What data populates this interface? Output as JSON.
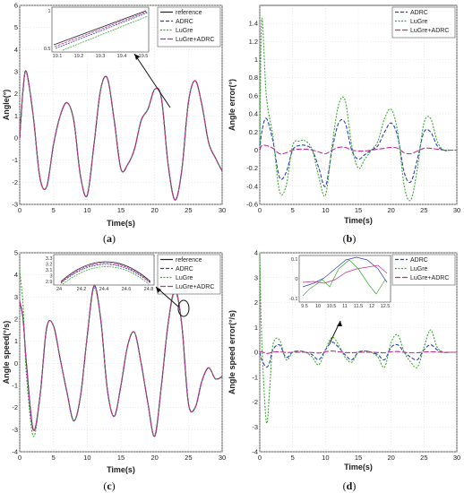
{
  "colors": {
    "reference": "#222222",
    "adrc": "#2b3fb8",
    "lugre": "#3aa832",
    "lugre_adrc": "#c0308a",
    "axis": "#333333",
    "grid": "#d8d8d8"
  },
  "panels": [
    {
      "id": "a",
      "caption": "a",
      "xlabel": "Time(s)",
      "ylabel": "Angle(°)",
      "xlim": [
        0,
        30
      ],
      "ylim": [
        -3,
        6
      ],
      "xticks": [
        "0",
        "5",
        "10",
        "15",
        "20",
        "25",
        "30"
      ],
      "yticks": [
        "-3",
        "-2",
        "-1",
        "0",
        "1",
        "2",
        "3",
        "4",
        "5",
        "6"
      ],
      "legend": [
        "reference",
        "ADRC",
        "LuGre",
        "LuGre+ADRC"
      ],
      "inset": {
        "xticks": [
          "19.1",
          "19.2",
          "19.3",
          "19.4",
          "19.5"
        ],
        "yticks": [
          "0.5",
          "1"
        ]
      }
    },
    {
      "id": "b",
      "caption": "b",
      "xlabel": "Time(s)",
      "ylabel": "Angle error(°)",
      "xlim": [
        0,
        30
      ],
      "ylim": [
        -0.6,
        1.6
      ],
      "xticks": [
        "0",
        "5",
        "10",
        "15",
        "20",
        "25",
        "30"
      ],
      "yticks": [
        "-0.6",
        "-0.4",
        "-0.2",
        "0",
        "0.2",
        "0.4",
        "0.6",
        "0.8",
        "1",
        "1.2",
        "1.4"
      ],
      "legend": [
        "ADRC",
        "LuGre",
        "LuGre+ADRC"
      ]
    },
    {
      "id": "c",
      "caption": "c",
      "xlabel": "Time(s)",
      "ylabel": "Angle speed(°/s)",
      "xlim": [
        0,
        30
      ],
      "ylim": [
        -4,
        5
      ],
      "xticks": [
        "0",
        "5",
        "10",
        "15",
        "20",
        "25",
        "30"
      ],
      "yticks": [
        "-4",
        "-3",
        "-2",
        "-1",
        "0",
        "1",
        "2",
        "3",
        "4",
        "5"
      ],
      "legend": [
        "reference",
        "ADRC",
        "LuGre",
        "LuGre+ADRC"
      ],
      "inset": {
        "xticks": [
          "24",
          "24.2",
          "24.4",
          "24.6",
          "24.8"
        ],
        "yticks": [
          "3.3",
          "3.2",
          "3.1",
          "3",
          "2.9"
        ]
      }
    },
    {
      "id": "d",
      "caption": "d",
      "xlabel": "Time(s)",
      "ylabel": "Angle speed error(°/s)",
      "xlim": [
        0,
        30
      ],
      "ylim": [
        -4,
        4
      ],
      "xticks": [
        "0",
        "5",
        "10",
        "15",
        "20",
        "25",
        "30"
      ],
      "yticks": [
        "-4",
        "-3",
        "-2",
        "-1",
        "0",
        "1",
        "2",
        "3",
        "4"
      ],
      "legend": [
        "ADRC",
        "LuGre",
        "LuGre+ADRC"
      ],
      "inset": {
        "xticks": [
          "9.5",
          "10",
          "10.5",
          "11",
          "11.5",
          "12",
          "12.5"
        ],
        "yticks": [
          "0.1",
          "0",
          "-0.1"
        ]
      }
    }
  ],
  "chart_data": [
    {
      "type": "line",
      "xlabel": "Time(s)",
      "ylabel": "Angle(°)",
      "xlim": [
        0,
        30
      ],
      "ylim": [
        -3,
        6
      ],
      "legend_position": "top-right",
      "x": [
        0,
        0.5,
        1,
        2,
        3,
        4,
        5,
        6,
        7,
        8,
        9,
        10,
        11,
        12,
        13,
        14,
        15,
        16,
        17,
        18,
        19,
        20,
        21,
        22,
        23,
        24,
        25,
        26,
        27,
        28,
        29,
        30
      ],
      "series": [
        {
          "name": "reference",
          "values": [
            0,
            2.2,
            3.0,
            1.0,
            -1.8,
            -2.2,
            -0.3,
            1.0,
            1.6,
            0.8,
            -1.7,
            -2.6,
            -0.3,
            2.2,
            2.7,
            0.8,
            -1.4,
            -1.2,
            -0.5,
            0.8,
            1.3,
            2.2,
            1.8,
            -1.2,
            -2.8,
            -1.5,
            1.6,
            2.6,
            1.5,
            -0.2,
            -0.9,
            -1.5
          ]
        },
        {
          "name": "ADRC",
          "values": [
            0,
            2.2,
            3.0,
            1.0,
            -1.8,
            -2.2,
            -0.3,
            1.0,
            1.6,
            0.8,
            -1.7,
            -2.6,
            -0.3,
            2.2,
            2.7,
            0.8,
            -1.4,
            -1.2,
            -0.5,
            0.8,
            1.3,
            2.2,
            1.8,
            -1.2,
            -2.8,
            -1.5,
            1.6,
            2.6,
            1.5,
            -0.2,
            -0.9,
            -1.5
          ]
        },
        {
          "name": "LuGre",
          "values": [
            0,
            2.2,
            3.0,
            1.0,
            -1.8,
            -2.2,
            -0.3,
            1.0,
            1.6,
            0.8,
            -1.7,
            -2.6,
            -0.3,
            2.2,
            2.7,
            0.8,
            -1.4,
            -1.2,
            -0.5,
            0.8,
            1.3,
            2.2,
            1.8,
            -1.2,
            -2.8,
            -1.5,
            1.6,
            2.6,
            1.5,
            -0.2,
            -0.9,
            -1.5
          ]
        },
        {
          "name": "LuGre+ADRC",
          "values": [
            0,
            2.2,
            3.0,
            1.0,
            -1.8,
            -2.2,
            -0.3,
            1.0,
            1.6,
            0.8,
            -1.7,
            -2.6,
            -0.3,
            2.2,
            2.7,
            0.8,
            -1.4,
            -1.2,
            -0.5,
            0.8,
            1.3,
            2.2,
            1.8,
            -1.2,
            -2.8,
            -1.5,
            1.6,
            2.6,
            1.5,
            -0.2,
            -0.9,
            -1.5
          ]
        }
      ]
    },
    {
      "type": "line",
      "xlabel": "Time(s)",
      "ylabel": "Angle error(°)",
      "xlim": [
        0,
        30
      ],
      "ylim": [
        -0.6,
        1.6
      ],
      "legend_position": "top-right",
      "x": [
        0,
        0.3,
        1,
        2,
        3,
        4,
        5,
        6,
        7,
        8,
        9,
        10,
        11,
        12,
        13,
        14,
        15,
        16,
        17,
        18,
        19,
        20,
        21,
        22,
        23,
        24,
        25,
        26,
        27,
        28,
        29,
        30
      ],
      "series": [
        {
          "name": "ADRC",
          "values": [
            0,
            0.2,
            0.35,
            0.1,
            -0.3,
            -0.25,
            0.0,
            0.05,
            0.05,
            0.0,
            -0.2,
            -0.4,
            0.0,
            0.3,
            0.3,
            0.0,
            -0.1,
            -0.05,
            0.0,
            0.05,
            0.2,
            0.3,
            0.15,
            -0.25,
            -0.35,
            -0.1,
            0.2,
            0.2,
            0.05,
            0.0,
            0.0,
            0.0
          ]
        },
        {
          "name": "LuGre",
          "values": [
            0,
            1.45,
            0.6,
            0.15,
            -0.45,
            -0.4,
            0.05,
            0.1,
            0.1,
            0.0,
            -0.3,
            -0.5,
            0.05,
            0.5,
            0.55,
            0.05,
            -0.2,
            -0.1,
            0.0,
            0.1,
            0.35,
            0.45,
            0.2,
            -0.4,
            -0.55,
            -0.2,
            0.3,
            0.35,
            0.1,
            0.0,
            0.0,
            0.0
          ]
        },
        {
          "name": "LuGre+ADRC",
          "values": [
            0,
            0.05,
            0.05,
            0.02,
            -0.04,
            -0.03,
            0.0,
            0.01,
            0.01,
            0.0,
            -0.02,
            -0.04,
            0.0,
            0.03,
            0.03,
            0.0,
            -0.01,
            -0.01,
            0.0,
            0.01,
            0.02,
            0.03,
            0.02,
            -0.03,
            -0.04,
            -0.01,
            0.02,
            0.02,
            0.01,
            0.0,
            0.0,
            0.0
          ]
        }
      ]
    },
    {
      "type": "line",
      "xlabel": "Time(s)",
      "ylabel": "Angle speed(°/s)",
      "xlim": [
        0,
        30
      ],
      "ylim": [
        -4,
        5
      ],
      "legend_position": "top-right",
      "x": [
        0,
        0.5,
        1,
        2,
        3,
        4,
        5,
        6,
        7,
        8,
        9,
        10,
        11,
        12,
        13,
        14,
        15,
        16,
        17,
        18,
        19,
        20,
        21,
        22,
        23,
        24,
        25,
        26,
        27,
        28,
        29,
        30
      ],
      "series": [
        {
          "name": "reference",
          "values": [
            2.8,
            2.0,
            0.0,
            -3.0,
            -1.5,
            1.6,
            1.7,
            0.2,
            -1.3,
            -2.6,
            -1.5,
            1.2,
            3.5,
            2.0,
            -1.2,
            -2.4,
            -1.0,
            0.8,
            1.4,
            0.0,
            -1.8,
            -3.3,
            -1.0,
            1.8,
            3.3,
            1.8,
            -1.8,
            -2.0,
            -0.8,
            -0.2,
            -0.7,
            -0.6
          ]
        },
        {
          "name": "ADRC",
          "values": [
            2.8,
            2.0,
            0.0,
            -3.0,
            -1.5,
            1.6,
            1.7,
            0.2,
            -1.3,
            -2.6,
            -1.5,
            1.2,
            3.5,
            2.0,
            -1.2,
            -2.4,
            -1.0,
            0.8,
            1.4,
            0.0,
            -1.8,
            -3.3,
            -1.0,
            1.8,
            3.3,
            1.8,
            -1.8,
            -2.0,
            -0.8,
            -0.2,
            -0.7,
            -0.6
          ]
        },
        {
          "name": "LuGre",
          "values": [
            4.2,
            2.6,
            -0.5,
            -3.3,
            -1.5,
            1.6,
            1.7,
            0.2,
            -1.3,
            -2.6,
            -1.5,
            1.2,
            3.4,
            2.0,
            -1.2,
            -2.4,
            -1.0,
            0.8,
            1.4,
            0.0,
            -1.8,
            -3.3,
            -1.0,
            1.8,
            3.2,
            1.8,
            -1.8,
            -2.0,
            -0.8,
            -0.2,
            -0.7,
            -0.6
          ]
        },
        {
          "name": "LuGre+ADRC",
          "values": [
            2.8,
            2.0,
            0.0,
            -3.0,
            -1.5,
            1.6,
            1.7,
            0.2,
            -1.3,
            -2.6,
            -1.5,
            1.2,
            3.5,
            2.0,
            -1.2,
            -2.4,
            -1.0,
            0.8,
            1.4,
            0.0,
            -1.8,
            -3.3,
            -1.0,
            1.8,
            3.3,
            1.8,
            -1.8,
            -2.0,
            -0.8,
            -0.2,
            -0.7,
            -0.6
          ]
        }
      ]
    },
    {
      "type": "line",
      "xlabel": "Time(s)",
      "ylabel": "Angle speed error(°/s)",
      "xlim": [
        0,
        30
      ],
      "ylim": [
        -4,
        4
      ],
      "legend_position": "top-right",
      "x": [
        0,
        0.3,
        1,
        1.5,
        2,
        3,
        4,
        5,
        6,
        7,
        8,
        9,
        10,
        11,
        12,
        13,
        14,
        15,
        16,
        17,
        18,
        19,
        20,
        21,
        22,
        23,
        24,
        25,
        26,
        27,
        28,
        29,
        30
      ],
      "series": [
        {
          "name": "ADRC",
          "values": [
            0,
            -0.3,
            -0.6,
            -0.4,
            0.1,
            0.3,
            -0.2,
            0.0,
            0.05,
            0.0,
            -0.1,
            -0.3,
            0.1,
            0.4,
            0.2,
            -0.1,
            -0.3,
            0.0,
            0.05,
            0.0,
            -0.1,
            -0.3,
            0.2,
            0.3,
            0.0,
            -0.2,
            -0.3,
            0.1,
            0.3,
            0.1,
            0.0,
            0.0,
            0.0
          ]
        },
        {
          "name": "LuGre",
          "values": [
            3.9,
            0.5,
            -2.8,
            -1.5,
            0.3,
            0.5,
            -0.3,
            0.0,
            0.05,
            0.0,
            -0.2,
            -0.5,
            0.1,
            0.6,
            0.3,
            -0.2,
            -0.4,
            0.0,
            0.05,
            0.0,
            -0.2,
            -0.6,
            0.4,
            0.7,
            0.0,
            -0.4,
            -0.6,
            0.2,
            0.9,
            0.2,
            0.0,
            0.0,
            0.0
          ]
        },
        {
          "name": "LuGre+ADRC",
          "values": [
            0,
            0.02,
            -0.05,
            -0.03,
            0.01,
            0.02,
            -0.01,
            0.0,
            0.0,
            0.0,
            -0.01,
            -0.03,
            0.02,
            0.05,
            0.02,
            -0.01,
            -0.02,
            0.0,
            0.0,
            0.0,
            -0.01,
            -0.02,
            0.02,
            0.03,
            0.0,
            -0.02,
            -0.02,
            0.01,
            0.02,
            0.01,
            0.0,
            0.0,
            0.0
          ]
        }
      ]
    }
  ]
}
